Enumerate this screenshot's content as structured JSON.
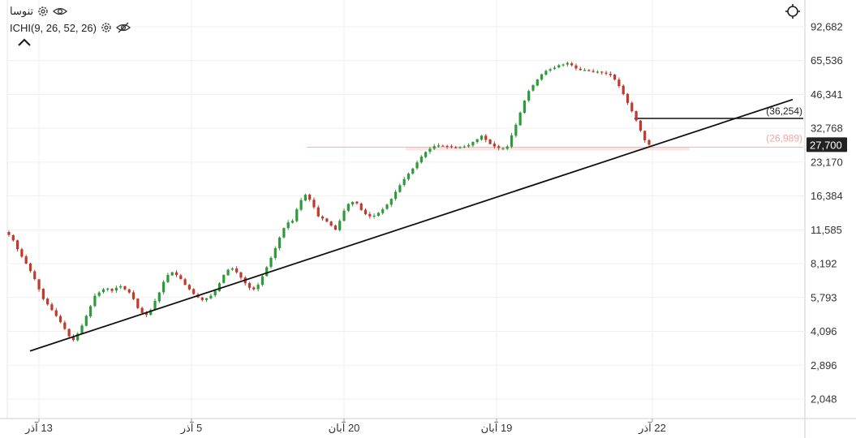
{
  "header": {
    "symbol": "تنوسا",
    "indicator": "ICHI(9, 26, 52, 26)"
  },
  "icons": {
    "symbol_settings": "gear-icon",
    "symbol_visibility": "eye-icon",
    "indicator_settings": "gear-icon",
    "indicator_visibility": "eye-off-icon",
    "collapse": "chevron-up-icon",
    "crosshair": "crosshair-icon"
  },
  "colors": {
    "up": "#2e9a3a",
    "down": "#c0392b",
    "price_badge_bg": "#222222",
    "price_badge_text": "#ffffff",
    "level_line": "#f2b8b5",
    "level_text": "#f2a5a0",
    "trendline": "#111111"
  },
  "chart_data": {
    "type": "candlestick",
    "y_scale": "log",
    "y_ticks": [
      "92,682",
      "65,536",
      "46,341",
      "32,768",
      "23,170",
      "16,384",
      "11,585",
      "8,192",
      "5,793",
      "4,096",
      "2,896",
      "2,048"
    ],
    "x_ticks": [
      "13 آذر",
      "5 آذر",
      "20 آبان",
      "19 آبان",
      "22 آذر"
    ],
    "last_price": "27,700",
    "horizontal_levels": [
      {
        "label": "(36,254)",
        "value": 36254,
        "style": "black"
      },
      {
        "label": "(26,989)",
        "value": 26989,
        "style": "pink"
      }
    ],
    "trendline": {
      "from": 3350,
      "to": 44000
    },
    "series": [
      {
        "name": "",
        "closes": [
          11000,
          10400,
          9500,
          8800,
          8200,
          7600,
          7000,
          6300,
          5700,
          5400,
          5100,
          4800,
          4500,
          4200,
          3900,
          3750,
          4000,
          4350,
          4800,
          5300,
          5900,
          6100,
          6300,
          6350,
          6200,
          6400,
          6500,
          6300,
          6100,
          5700,
          5200,
          4950,
          4850,
          5100,
          5600,
          6100,
          6800,
          7300,
          7500,
          7300,
          7000,
          6600,
          6300,
          6000,
          5800,
          5650,
          5750,
          5900,
          6200,
          6700,
          7300,
          7700,
          7800,
          7500,
          7100,
          6700,
          6400,
          6300,
          6600,
          7200,
          7900,
          8700,
          9600,
          10700,
          11800,
          12500,
          12700,
          14300,
          15700,
          16600,
          15800,
          14600,
          13300,
          13000,
          12600,
          12100,
          11600,
          12700,
          14100,
          15100,
          15400,
          15200,
          14200,
          13600,
          13300,
          13400,
          13800,
          14300,
          15000,
          15900,
          17100,
          18300,
          19500,
          20600,
          21700,
          23100,
          24500,
          25700,
          26600,
          27300,
          27500,
          27400,
          27200,
          27100,
          26900,
          27000,
          27200,
          27600,
          28500,
          29300,
          30400,
          29100,
          27900,
          27200,
          26800,
          26700,
          27200,
          30500,
          34000,
          38500,
          43500,
          48000,
          51000,
          54000,
          57000,
          59000,
          60000,
          61000,
          62500,
          63000,
          64000,
          62500,
          60500,
          59500,
          59500,
          59000,
          58500,
          58500,
          58000,
          57500,
          56500,
          54000,
          50500,
          46500,
          42500,
          39000,
          35500,
          32000,
          29000,
          27700
        ]
      }
    ]
  }
}
